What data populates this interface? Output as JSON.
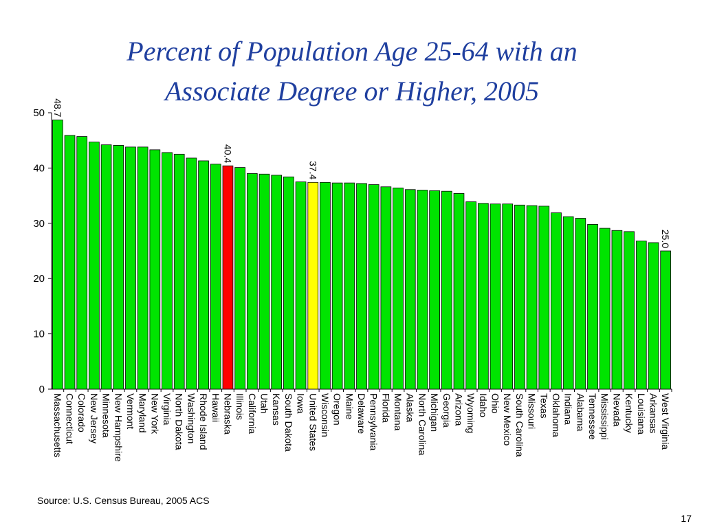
{
  "slide": {
    "title_line1": "Percent of Population Age 25-64 with an",
    "title_line2": "Associate Degree or Higher, 2005",
    "source": "Source:  U.S. Census Bureau, 2005 ACS",
    "page_number": "17"
  },
  "colors": {
    "default_bar": "#00e400",
    "highlight_nebraska": "#ff0000",
    "highlight_us": "#ffff00",
    "title": "#1f3f9f"
  },
  "chart_data": {
    "type": "bar",
    "ylim": [
      0,
      50
    ],
    "yticks": [
      0,
      10,
      20,
      30,
      40,
      50
    ],
    "grid": false,
    "categories": [
      "Massachusetts",
      "Connecticut",
      "Colorado",
      "New Jersey",
      "Minnesota",
      "New Hampshire",
      "Vermont",
      "Maryland",
      "New York",
      "Virginia",
      "North Dakota",
      "Washington",
      "Rhode Island",
      "Hawaii",
      "Nebraska",
      "Illinois",
      "California",
      "Utah",
      "Kansas",
      "South Dakota",
      "Iowa",
      "United States",
      "Wisconsin",
      "Oregon",
      "Maine",
      "Delaware",
      "Pennsylvania",
      "Florida",
      "Montana",
      "Alaska",
      "North Carolina",
      "Michigan",
      "Georgia",
      "Arizona",
      "Wyoming",
      "Idaho",
      "Ohio",
      "New Mexico",
      "South Carolina",
      "Missouri",
      "Texas",
      "Oklahoma",
      "Indiana",
      "Alabama",
      "Tennessee",
      "Mississippi",
      "Nevada",
      "Kentucky",
      "Louisiana",
      "Arkansas",
      "West Virginia"
    ],
    "values": [
      48.7,
      45.9,
      45.7,
      44.7,
      44.2,
      44.1,
      43.8,
      43.8,
      43.3,
      42.8,
      42.5,
      41.8,
      41.3,
      40.7,
      40.4,
      40.1,
      39.0,
      38.9,
      38.7,
      38.4,
      37.5,
      37.4,
      37.4,
      37.3,
      37.3,
      37.2,
      37.0,
      36.6,
      36.4,
      36.1,
      36.0,
      35.9,
      35.8,
      35.4,
      33.9,
      33.6,
      33.5,
      33.5,
      33.3,
      33.2,
      33.1,
      31.9,
      31.2,
      30.9,
      29.8,
      29.1,
      28.7,
      28.5,
      26.8,
      26.5,
      25.0
    ],
    "highlights": {
      "Nebraska": "red",
      "United States": "yellow"
    },
    "value_labels": [
      {
        "category": "Massachusetts",
        "text": "48.7"
      },
      {
        "category": "Nebraska",
        "text": "40.4"
      },
      {
        "category": "United States",
        "text": "37.4"
      },
      {
        "category": "West Virginia",
        "text": "25.0"
      }
    ]
  }
}
